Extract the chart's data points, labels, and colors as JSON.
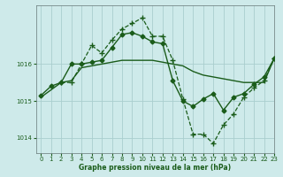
{
  "title": "Graphe pression niveau de la mer (hPa)",
  "background_color": "#ceeaea",
  "grid_color": "#aacece",
  "line_color": "#1a5c1a",
  "xlim": [
    -0.5,
    23
  ],
  "ylim": [
    1013.6,
    1017.6
  ],
  "yticks": [
    1014,
    1015,
    1016
  ],
  "xticks": [
    0,
    1,
    2,
    3,
    4,
    5,
    6,
    7,
    8,
    9,
    10,
    11,
    12,
    13,
    14,
    15,
    16,
    17,
    18,
    19,
    20,
    21,
    22,
    23
  ],
  "series": [
    {
      "x": [
        0,
        1,
        2,
        3,
        4,
        5,
        6,
        7,
        8,
        9,
        10,
        11,
        12,
        13,
        14,
        15,
        16,
        17,
        18,
        19,
        20,
        21,
        22,
        23
      ],
      "y": [
        1015.1,
        1015.3,
        1015.5,
        1015.55,
        1015.9,
        1015.95,
        1016.0,
        1016.05,
        1016.1,
        1016.1,
        1016.1,
        1016.1,
        1016.05,
        1016.0,
        1015.95,
        1015.8,
        1015.7,
        1015.65,
        1015.6,
        1015.55,
        1015.5,
        1015.5,
        1015.5,
        1016.15
      ],
      "marker": null,
      "linestyle": "-",
      "linewidth": 1.0
    },
    {
      "x": [
        0,
        1,
        2,
        3,
        4,
        5,
        6,
        7,
        8,
        9,
        10,
        11,
        12,
        13,
        14,
        15,
        16,
        17,
        18,
        19,
        20,
        21,
        22,
        23
      ],
      "y": [
        1015.15,
        1015.4,
        1015.5,
        1016.0,
        1016.0,
        1016.05,
        1016.1,
        1016.45,
        1016.8,
        1016.85,
        1016.75,
        1016.6,
        1016.55,
        1015.55,
        1015.0,
        1014.85,
        1015.05,
        1015.2,
        1014.75,
        1015.1,
        1015.2,
        1015.45,
        1015.65,
        1016.15
      ],
      "marker": "D",
      "linestyle": "-",
      "linewidth": 1.0
    },
    {
      "x": [
        2,
        3,
        4,
        5,
        6,
        7,
        8,
        9,
        10,
        11,
        12,
        13,
        14,
        15,
        16,
        17,
        18,
        19,
        20,
        21,
        22,
        23
      ],
      "y": [
        1015.5,
        1015.5,
        1016.0,
        1016.5,
        1016.3,
        1016.65,
        1016.95,
        1017.1,
        1017.25,
        1016.75,
        1016.75,
        1016.1,
        1015.05,
        1014.1,
        1014.1,
        1013.85,
        1014.35,
        1014.65,
        1015.1,
        1015.35,
        1015.55,
        1016.15
      ],
      "marker": "+",
      "linestyle": "--",
      "linewidth": 0.9
    }
  ]
}
